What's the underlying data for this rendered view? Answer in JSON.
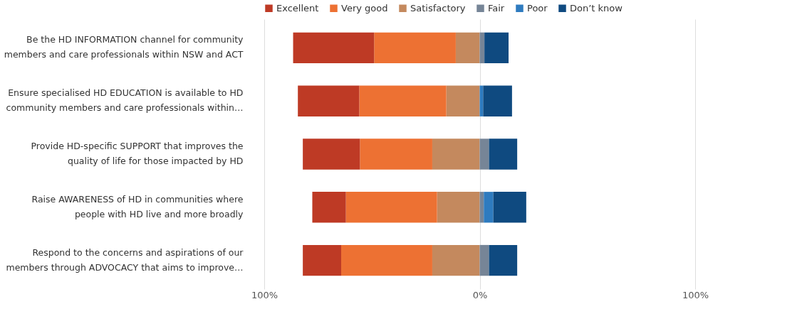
{
  "chart_data": {
    "type": "bar",
    "orientation": "horizontal",
    "stacked": true,
    "categories": [
      "Be the HD INFORMATION channel for community\nmembers and care professionals within NSW and ACT",
      "Ensure specialised HD EDUCATION is available to HD\ncommunity members and care professionals within…",
      "Provide HD-specific SUPPORT that improves the\nquality of life for those impacted by HD",
      "Raise AWARENESS of HD in communities where\npeople with HD live and more broadly",
      "Respond to the concerns and aspirations of our\nmembers through ADVOCACY that aims to improve…"
    ],
    "series": [
      {
        "name": "Excellent",
        "color": "#be3a25",
        "values": [
          -37.6,
          -28.5,
          -26.5,
          -15.6,
          -17.8
        ]
      },
      {
        "name": "Very good",
        "color": "#ed7133",
        "values": [
          -37.9,
          -40.4,
          -33.6,
          -42.3,
          -42.3
        ]
      },
      {
        "name": "Satisfactory",
        "color": "#c4895e",
        "values": [
          -11.1,
          -15.5,
          -22.0,
          -19.8,
          -22.0
        ]
      },
      {
        "name": "Fair",
        "color": "#768597",
        "values": [
          2.2,
          0,
          4.3,
          1.9,
          4.3
        ]
      },
      {
        "name": "Poor",
        "color": "#2e7bbf",
        "values": [
          0,
          1.6,
          0,
          4.4,
          0
        ]
      },
      {
        "name": "Don’t know",
        "color": "#0f4a80",
        "values": [
          11.2,
          13.4,
          13.1,
          15.3,
          13.1
        ]
      }
    ],
    "xlim": [
      -100,
      100
    ],
    "xticks": [
      {
        "value": -100,
        "label": "100%"
      },
      {
        "value": 0,
        "label": "0%"
      },
      {
        "value": 100,
        "label": "100%"
      }
    ],
    "grid": "x",
    "legend": "top left"
  }
}
